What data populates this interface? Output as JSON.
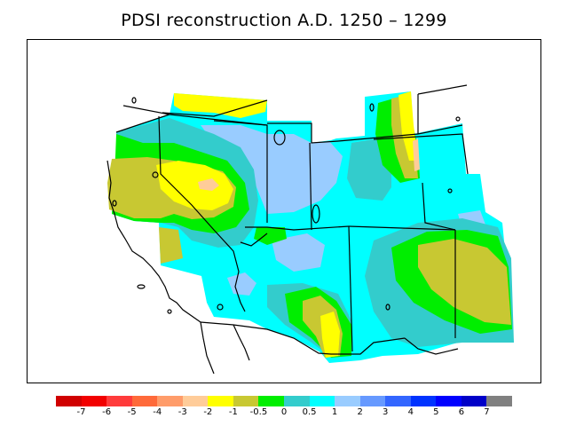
{
  "title": "PDSI reconstruction A.D. 1250 – 1299",
  "legend": {
    "colors": [
      "#d00000",
      "#f20000",
      "#ff3b3b",
      "#ff6a3a",
      "#ff9c6a",
      "#ffcc99",
      "#ffff00",
      "#c8c832",
      "#00ee00",
      "#33cccc",
      "#00ffff",
      "#99ccff",
      "#6699ff",
      "#3366ff",
      "#0033ff",
      "#0000ff",
      "#0000c8",
      "#808080"
    ],
    "labels": [
      "-7",
      "-6",
      "-5",
      "-4",
      "-3",
      "-2",
      "-1",
      "-0.5",
      "0",
      "0.5",
      "1",
      "2",
      "3",
      "4",
      "5",
      "6",
      "7"
    ]
  }
}
